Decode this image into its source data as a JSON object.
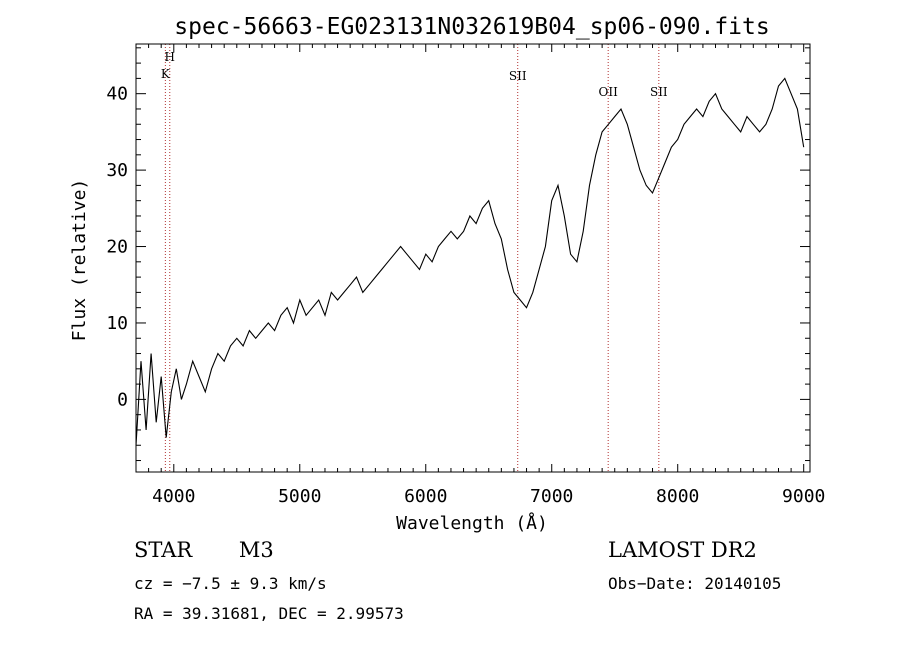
{
  "chart_data": {
    "type": "line",
    "title": "spec-56663-EG023131N032619B04_sp06-090.fits",
    "xlabel": "Wavelength (Å)",
    "ylabel": "Flux (relative)",
    "xlim": [
      3700,
      9050
    ],
    "ylim": [
      -9.5,
      46.5
    ],
    "xticks": [
      4000,
      5000,
      6000,
      7000,
      8000,
      9000
    ],
    "yticks": [
      0,
      10,
      20,
      30,
      40
    ],
    "grid": false,
    "series": [
      {
        "x": [
          3700,
          3740,
          3780,
          3820,
          3860,
          3900,
          3940,
          3980,
          4020,
          4060,
          4100,
          4150,
          4200,
          4250,
          4300,
          4350,
          4400,
          4450,
          4500,
          4550,
          4600,
          4650,
          4700,
          4750,
          4800,
          4850,
          4900,
          4950,
          5000,
          5050,
          5100,
          5150,
          5200,
          5250,
          5300,
          5350,
          5400,
          5450,
          5500,
          5550,
          5600,
          5650,
          5700,
          5750,
          5800,
          5850,
          5900,
          5950,
          6000,
          6050,
          6100,
          6150,
          6200,
          6250,
          6300,
          6350,
          6400,
          6450,
          6500,
          6550,
          6600,
          6650,
          6700,
          6750,
          6800,
          6850,
          6900,
          6950,
          7000,
          7050,
          7100,
          7150,
          7200,
          7250,
          7300,
          7350,
          7400,
          7450,
          7500,
          7550,
          7600,
          7650,
          7700,
          7750,
          7800,
          7850,
          7900,
          7950,
          8000,
          8050,
          8100,
          8150,
          8200,
          8250,
          8300,
          8350,
          8400,
          8450,
          8500,
          8550,
          8600,
          8650,
          8700,
          8750,
          8800,
          8850,
          8900,
          8950,
          9000
        ],
        "y": [
          -6,
          5,
          -4,
          6,
          -3,
          3,
          -5,
          1,
          4,
          0,
          2,
          5,
          3,
          1,
          4,
          6,
          5,
          7,
          8,
          7,
          9,
          8,
          9,
          10,
          9,
          11,
          12,
          10,
          13,
          11,
          12,
          13,
          11,
          14,
          13,
          14,
          15,
          16,
          14,
          15,
          16,
          17,
          18,
          19,
          20,
          19,
          18,
          17,
          19,
          18,
          20,
          21,
          22,
          21,
          22,
          24,
          23,
          25,
          26,
          23,
          21,
          17,
          14,
          13,
          12,
          14,
          17,
          20,
          26,
          28,
          24,
          19,
          18,
          22,
          28,
          32,
          35,
          36,
          37,
          38,
          36,
          33,
          30,
          28,
          27,
          29,
          31,
          33,
          34,
          36,
          37,
          38,
          37,
          39,
          40,
          38,
          37,
          36,
          35,
          37,
          36,
          35,
          36,
          38,
          41,
          42,
          40,
          38,
          33
        ]
      }
    ],
    "annotations": [
      {
        "label": "H",
        "x": 3968
      },
      {
        "label": "K",
        "x": 3933
      },
      {
        "label": "SII",
        "x": 6730
      },
      {
        "label": "OII",
        "x": 7448
      },
      {
        "label": "SII",
        "x": 7850
      }
    ]
  },
  "info": {
    "object_class": "STAR",
    "subclass": "M3",
    "survey": "LAMOST DR2",
    "cz_text": "cz = −7.5 ± 9.3 km/s",
    "obs_date_text": "Obs−Date: 20140105",
    "radec_text": "RA =  39.31681, DEC =   2.99573"
  }
}
